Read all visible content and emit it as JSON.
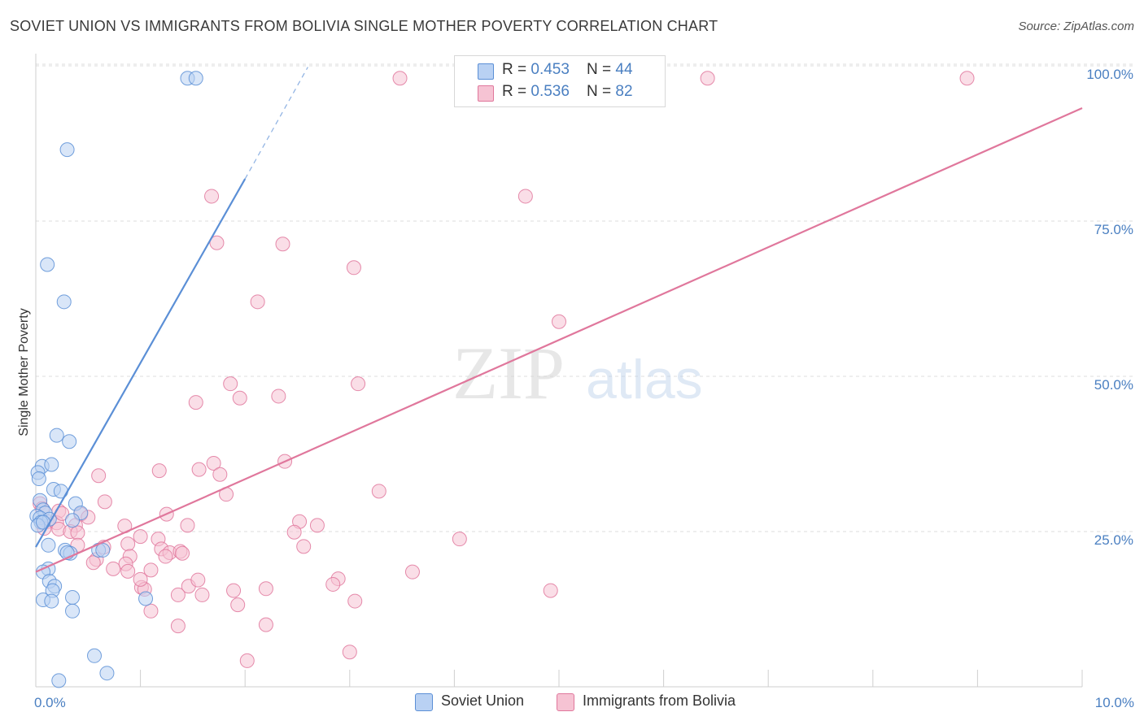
{
  "title": "SOVIET UNION VS IMMIGRANTS FROM BOLIVIA SINGLE MOTHER POVERTY CORRELATION CHART",
  "source": "Source: ZipAtlas.com",
  "watermark": {
    "zip": "ZIP",
    "atlas": "atlas"
  },
  "colors": {
    "blue": "#5b8fd6",
    "blue_fill": "#b9d1f3",
    "pink": "#e0779c",
    "pink_fill": "#f6c3d3",
    "tick": "#4a7fc1"
  },
  "legend": {
    "rows": [
      {
        "r_label": "R = ",
        "r_value": "0.453",
        "n_label": "N = ",
        "n_value": "44"
      },
      {
        "r_label": "R = ",
        "r_value": "0.536",
        "n_label": "N = ",
        "n_value": "82"
      }
    ]
  },
  "bottom_legend": [
    "Soviet Union",
    "Immigrants from Bolivia"
  ],
  "chart_data": {
    "type": "scatter",
    "xlabel": "",
    "ylabel": "Single Mother Poverty",
    "xlim": [
      0,
      10
    ],
    "ylim": [
      0,
      102
    ],
    "x_tick_labels": [
      {
        "value": 0,
        "label": "0.0%"
      },
      {
        "value": 10,
        "label": "10.0%"
      }
    ],
    "y_tick_labels": [
      {
        "value": 25,
        "label": "25.0%"
      },
      {
        "value": 50,
        "label": "50.0%"
      },
      {
        "value": 75,
        "label": "75.0%"
      },
      {
        "value": 100,
        "label": "100.0%"
      }
    ],
    "grid": true,
    "legend_position": "top-center",
    "series": [
      {
        "name": "Soviet Union",
        "color": "#5b8fd6",
        "trend": {
          "x": [
            0.0,
            2.0
          ],
          "y": [
            22.5,
            81.8
          ],
          "dashed_to": {
            "x": 2.6,
            "y": 99.8
          }
        },
        "points": [
          [
            1.45,
            98.0
          ],
          [
            1.53,
            98.0
          ],
          [
            0.3,
            86.5
          ],
          [
            0.11,
            68.0
          ],
          [
            0.27,
            62.0
          ],
          [
            0.2,
            40.5
          ],
          [
            0.32,
            39.5
          ],
          [
            0.06,
            35.5
          ],
          [
            0.15,
            35.8
          ],
          [
            0.02,
            34.5
          ],
          [
            0.03,
            33.5
          ],
          [
            0.17,
            31.8
          ],
          [
            0.24,
            31.5
          ],
          [
            0.04,
            30.0
          ],
          [
            0.38,
            29.5
          ],
          [
            0.07,
            28.5
          ],
          [
            0.09,
            28.0
          ],
          [
            0.01,
            27.5
          ],
          [
            0.04,
            27.2
          ],
          [
            0.13,
            27.0
          ],
          [
            0.43,
            28.0
          ],
          [
            0.05,
            26.5
          ],
          [
            0.02,
            26.0
          ],
          [
            0.07,
            26.5
          ],
          [
            0.35,
            26.8
          ],
          [
            0.12,
            22.8
          ],
          [
            0.28,
            22.0
          ],
          [
            0.33,
            21.5
          ],
          [
            0.6,
            22.0
          ],
          [
            0.64,
            22.0
          ],
          [
            0.12,
            19.0
          ],
          [
            0.07,
            18.5
          ],
          [
            0.13,
            17.0
          ],
          [
            0.18,
            16.2
          ],
          [
            0.16,
            15.5
          ],
          [
            0.07,
            14.0
          ],
          [
            0.15,
            13.8
          ],
          [
            0.35,
            14.4
          ],
          [
            1.05,
            14.2
          ],
          [
            0.35,
            12.2
          ],
          [
            0.56,
            5.0
          ],
          [
            0.68,
            2.2
          ],
          [
            0.22,
            1.0
          ],
          [
            0.3,
            21.6
          ]
        ]
      },
      {
        "name": "Immigrants from Bolivia",
        "color": "#e0779c",
        "trend": {
          "x": [
            0.0,
            10.0
          ],
          "y": [
            18.5,
            93.2
          ]
        },
        "points": [
          [
            3.48,
            98.0
          ],
          [
            6.42,
            98.0
          ],
          [
            8.9,
            98.0
          ],
          [
            1.68,
            79.0
          ],
          [
            4.68,
            79.0
          ],
          [
            1.73,
            71.5
          ],
          [
            2.36,
            71.3
          ],
          [
            3.04,
            67.5
          ],
          [
            2.12,
            62.0
          ],
          [
            5.0,
            58.8
          ],
          [
            1.86,
            48.8
          ],
          [
            3.08,
            48.8
          ],
          [
            1.95,
            46.5
          ],
          [
            2.32,
            46.8
          ],
          [
            1.53,
            45.8
          ],
          [
            1.7,
            36.0
          ],
          [
            2.38,
            36.3
          ],
          [
            1.56,
            35.0
          ],
          [
            1.18,
            34.8
          ],
          [
            1.76,
            34.2
          ],
          [
            0.6,
            34.0
          ],
          [
            3.28,
            31.5
          ],
          [
            1.82,
            31.0
          ],
          [
            0.66,
            29.8
          ],
          [
            0.04,
            29.5
          ],
          [
            0.06,
            28.7
          ],
          [
            0.22,
            28.3
          ],
          [
            0.43,
            27.8
          ],
          [
            1.25,
            27.8
          ],
          [
            0.11,
            26.6
          ],
          [
            0.2,
            26.4
          ],
          [
            0.38,
            26.0
          ],
          [
            1.45,
            26.0
          ],
          [
            2.52,
            26.6
          ],
          [
            2.69,
            26.0
          ],
          [
            0.08,
            25.5
          ],
          [
            0.22,
            25.4
          ],
          [
            0.33,
            25.0
          ],
          [
            0.4,
            24.8
          ],
          [
            0.85,
            25.9
          ],
          [
            2.47,
            24.9
          ],
          [
            1.0,
            24.2
          ],
          [
            1.17,
            23.8
          ],
          [
            4.05,
            23.8
          ],
          [
            0.88,
            23.0
          ],
          [
            0.65,
            22.5
          ],
          [
            1.2,
            22.2
          ],
          [
            1.28,
            21.6
          ],
          [
            0.9,
            21.0
          ],
          [
            1.38,
            21.8
          ],
          [
            1.4,
            21.5
          ],
          [
            2.56,
            22.6
          ],
          [
            1.24,
            21.0
          ],
          [
            0.58,
            20.5
          ],
          [
            0.55,
            20.0
          ],
          [
            0.86,
            19.8
          ],
          [
            0.74,
            19.0
          ],
          [
            0.88,
            18.6
          ],
          [
            1.1,
            18.8
          ],
          [
            3.6,
            18.5
          ],
          [
            2.89,
            17.4
          ],
          [
            1.46,
            16.2
          ],
          [
            2.84,
            16.5
          ],
          [
            1.01,
            16.0
          ],
          [
            1.04,
            15.7
          ],
          [
            1.55,
            17.2
          ],
          [
            1.89,
            15.5
          ],
          [
            1.36,
            14.8
          ],
          [
            1.59,
            14.8
          ],
          [
            2.2,
            15.8
          ],
          [
            4.92,
            15.5
          ],
          [
            3.05,
            13.8
          ],
          [
            1.93,
            13.2
          ],
          [
            1.1,
            12.2
          ],
          [
            1.36,
            9.8
          ],
          [
            2.2,
            10.0
          ],
          [
            3.0,
            5.6
          ],
          [
            2.02,
            4.2
          ],
          [
            0.4,
            22.8
          ],
          [
            0.25,
            27.9
          ],
          [
            0.5,
            27.3
          ],
          [
            1.0,
            17.3
          ]
        ]
      }
    ]
  }
}
